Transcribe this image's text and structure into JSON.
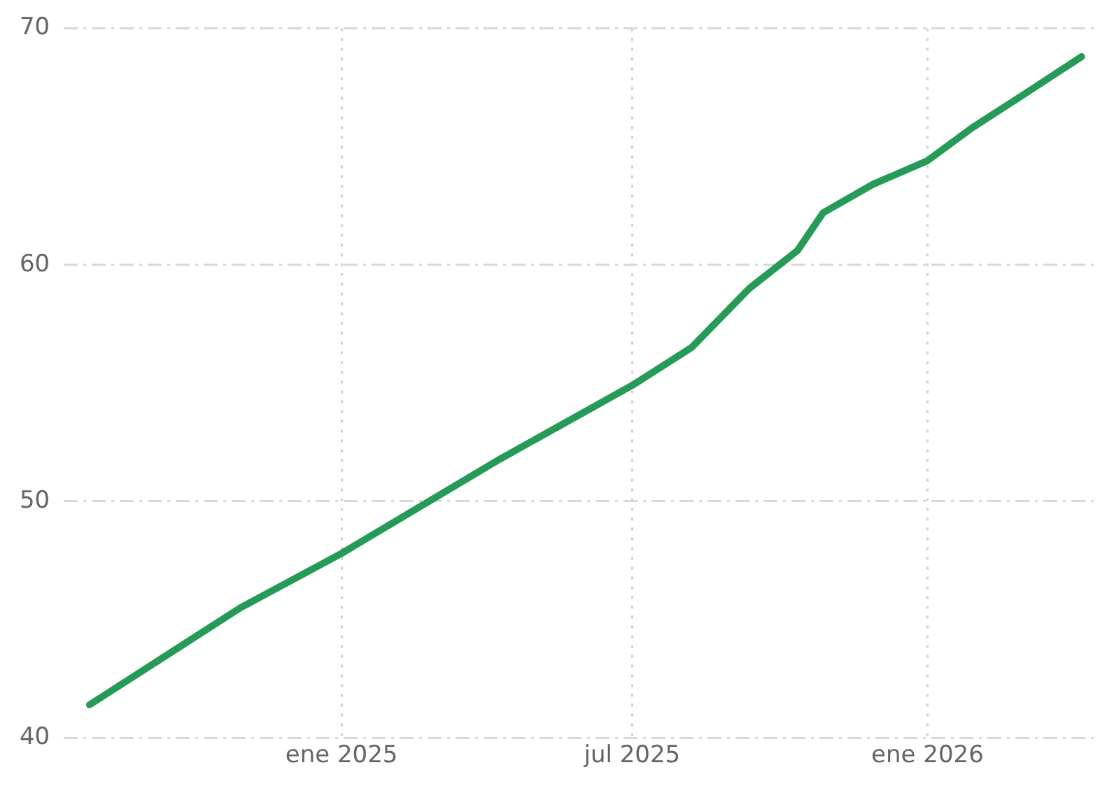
{
  "chart_data": {
    "type": "line",
    "x": [
      "2024-07-28",
      "2024-10-30",
      "2025-01-01",
      "2025-04-10",
      "2025-07-01",
      "2025-08-07",
      "2025-09-12",
      "2025-10-12",
      "2025-10-18",
      "2025-10-28",
      "2025-11-28",
      "2026-01-01",
      "2026-01-29",
      "2026-03-02",
      "2026-04-07"
    ],
    "series": [
      {
        "color": "#259b57",
        "values": [
          41.4,
          45.5,
          47.8,
          51.8,
          54.9,
          56.5,
          59.0,
          60.6,
          61.2,
          62.2,
          63.4,
          64.4,
          65.8,
          67.2,
          68.8
        ]
      }
    ],
    "xlim": [
      "2024-07-12",
      "2026-04-15"
    ],
    "xticks": [
      {
        "value": "2025-01-01",
        "label": "ene 2025"
      },
      {
        "value": "2025-07-01",
        "label": "jul 2025"
      },
      {
        "value": "2026-01-01",
        "label": "ene 2026"
      }
    ],
    "ylim": [
      40,
      70
    ],
    "yticks": [
      40,
      50,
      60,
      70
    ],
    "grid": true,
    "legend": false,
    "marker": "none",
    "line_style": "solid"
  }
}
